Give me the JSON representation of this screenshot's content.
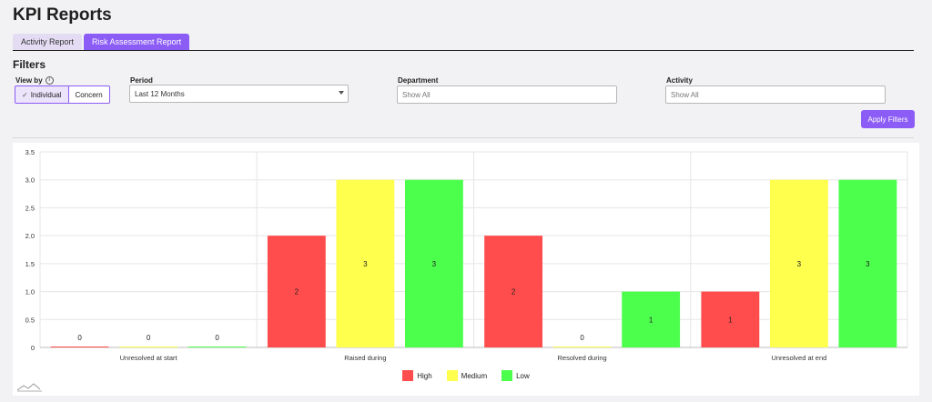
{
  "page": {
    "title": "KPI Reports"
  },
  "tabs": [
    {
      "label": "Activity Report",
      "active": false
    },
    {
      "label": "Risk Assessment Report",
      "active": true
    }
  ],
  "filters": {
    "heading": "Filters",
    "view_by": {
      "label": "View by",
      "info_icon": "info-icon",
      "options": [
        {
          "label": "Individual",
          "selected": true
        },
        {
          "label": "Concern",
          "selected": false
        }
      ]
    },
    "period": {
      "label": "Period",
      "value": "Last 12 Months"
    },
    "department": {
      "label": "Department",
      "placeholder": "Show All"
    },
    "activity": {
      "label": "Activity",
      "placeholder": "Show All"
    },
    "apply_label": "Apply Filters"
  },
  "colors": {
    "accent": "#8b5cf6",
    "high": "#ff4d4d",
    "medium": "#ffff4d",
    "low": "#4dff4d"
  },
  "chart_data": {
    "type": "bar",
    "categories": [
      "Unresolved at start",
      "Raised during",
      "Resolved during",
      "Unresolved at end"
    ],
    "series": [
      {
        "name": "High",
        "color": "#ff4d4d",
        "values": [
          0,
          2,
          2,
          1
        ]
      },
      {
        "name": "Medium",
        "color": "#ffff4d",
        "values": [
          0,
          3,
          0,
          3
        ]
      },
      {
        "name": "Low",
        "color": "#4dff4d",
        "values": [
          0,
          3,
          1,
          3
        ]
      }
    ],
    "ylim": [
      0,
      3.5
    ],
    "yticks": [
      "0",
      "0.5",
      "1.0",
      "1.5",
      "2.0",
      "2.5",
      "3.0",
      "3.5"
    ],
    "grid": true,
    "legend_position": "bottom-center",
    "data_labels": true
  }
}
